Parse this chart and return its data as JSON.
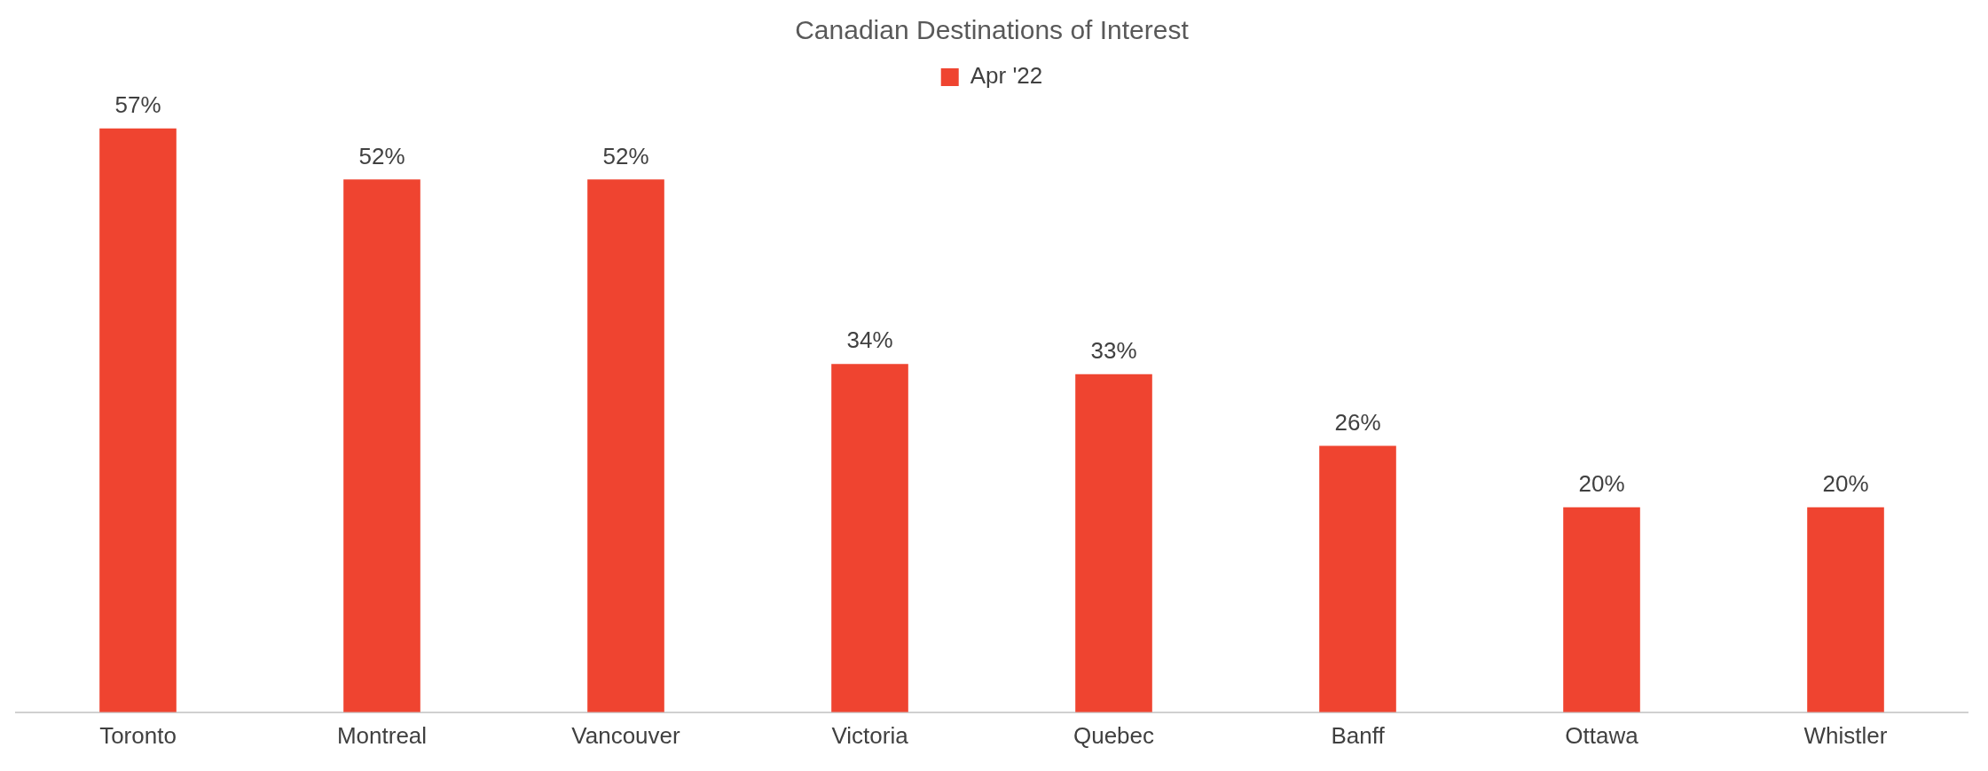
{
  "chart_data": {
    "type": "bar",
    "title": "Canadian Destinations of Interest",
    "categories": [
      "Toronto",
      "Montreal",
      "Vancouver",
      "Victoria",
      "Quebec",
      "Banff",
      "Ottawa",
      "Whistler"
    ],
    "series": [
      {
        "name": "Apr '22",
        "color": "#ef4430",
        "values": [
          57,
          52,
          52,
          34,
          33,
          26,
          20,
          20
        ],
        "value_labels": [
          "57%",
          "52%",
          "52%",
          "34%",
          "33%",
          "26%",
          "20%",
          "20%"
        ]
      }
    ],
    "legend": "top"
  }
}
